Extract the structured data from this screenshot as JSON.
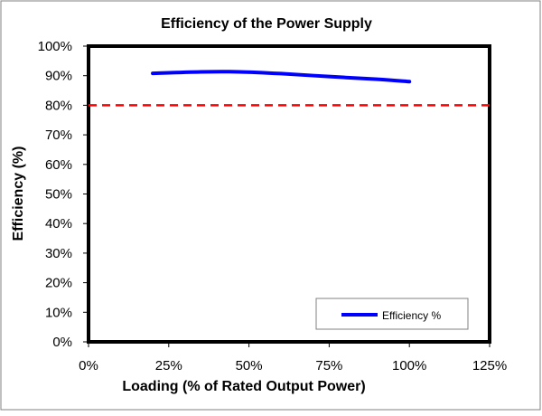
{
  "chart_data": {
    "type": "line",
    "title": "Efficiency of the Power Supply",
    "xlabel": "Loading (% of Rated Output Power)",
    "ylabel": "Efficiency (%)",
    "xlim": [
      0,
      125
    ],
    "ylim": [
      0,
      100
    ],
    "x_ticks": [
      "0%",
      "25%",
      "50%",
      "75%",
      "100%",
      "125%"
    ],
    "x_tick_values": [
      0,
      25,
      50,
      75,
      100,
      125
    ],
    "y_ticks": [
      "0%",
      "10%",
      "20%",
      "30%",
      "40%",
      "50%",
      "60%",
      "70%",
      "80%",
      "90%",
      "100%"
    ],
    "y_tick_values": [
      0,
      10,
      20,
      30,
      40,
      50,
      60,
      70,
      80,
      90,
      100
    ],
    "grid": false,
    "legend": "bottom-right",
    "series": [
      {
        "name": "Efficiency %",
        "color": "#0000ff",
        "x": [
          20,
          35,
          47,
          60,
          75,
          90,
          100
        ],
        "y": [
          90.8,
          91.3,
          91.3,
          90.7,
          89.7,
          88.8,
          88.0
        ]
      }
    ],
    "reference_line": {
      "y": 80,
      "color": "#ff0000",
      "style": "dashed"
    }
  }
}
